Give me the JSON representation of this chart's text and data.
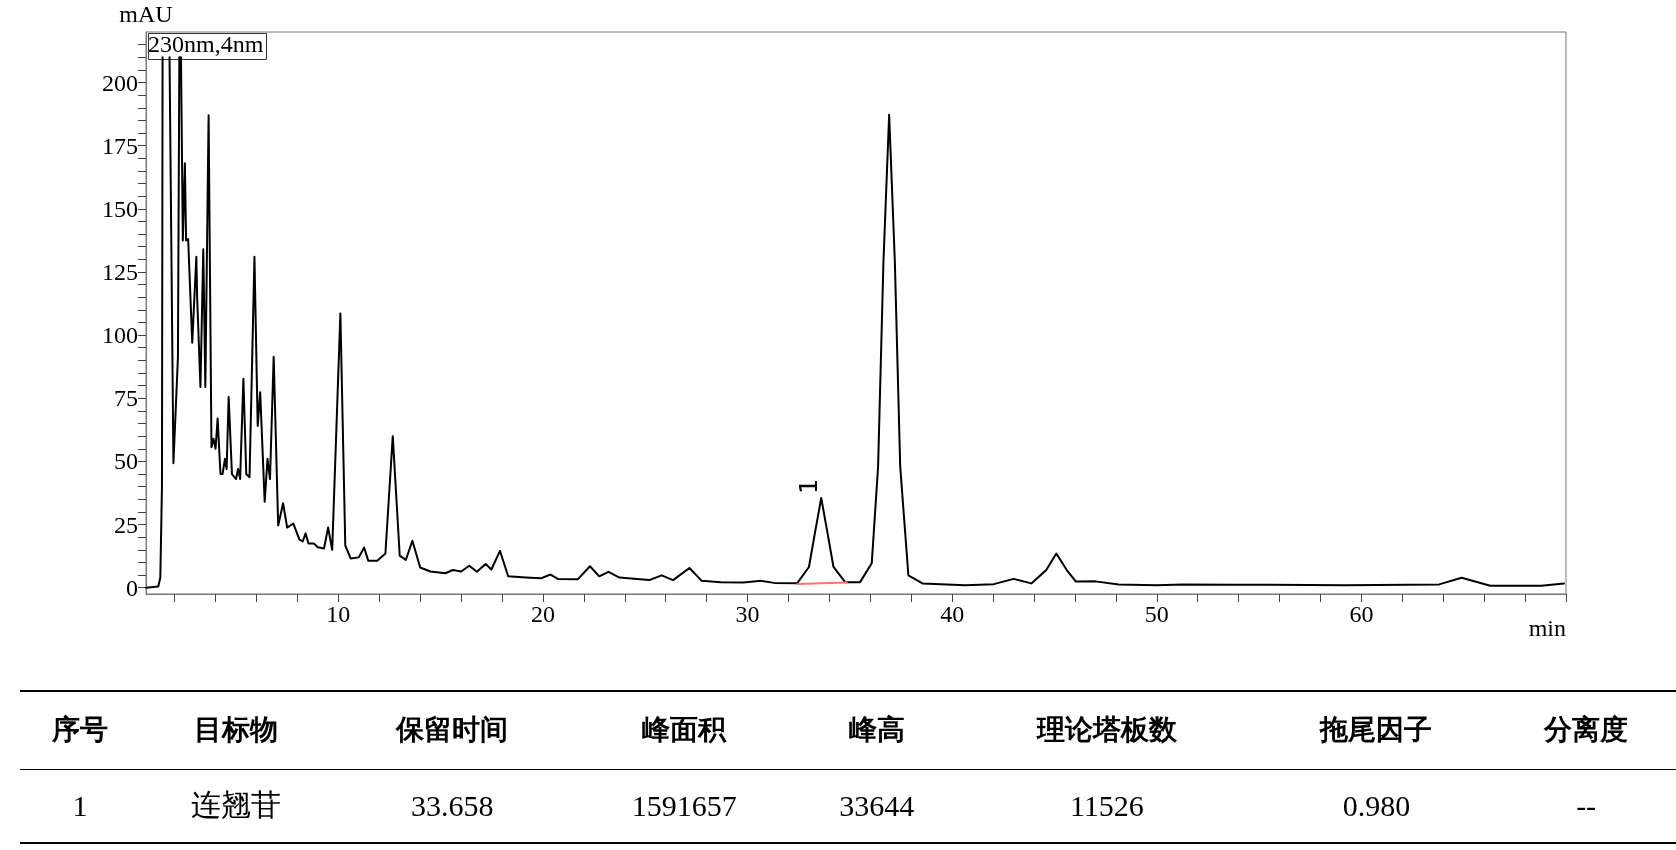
{
  "chart_data": {
    "type": "line",
    "xlabel": "min",
    "ylabel": "mAU",
    "xlim": [
      0.6,
      70
    ],
    "ylim": [
      -2.5,
      220
    ],
    "xticks": [
      {
        "value": 2,
        "label": null
      },
      {
        "value": 4,
        "label": null
      },
      {
        "value": 6,
        "label": null
      },
      {
        "value": 8,
        "label": null
      },
      10,
      {
        "value": 12,
        "label": null
      },
      {
        "value": 14,
        "label": null
      },
      {
        "value": 16,
        "label": null
      },
      {
        "value": 18,
        "label": null
      },
      20,
      {
        "value": 22,
        "label": null
      },
      {
        "value": 24,
        "label": null
      },
      {
        "value": 26,
        "label": null
      },
      {
        "value": 28,
        "label": null
      },
      30,
      {
        "value": 32,
        "label": null
      },
      {
        "value": 34,
        "label": null
      },
      {
        "value": 36,
        "label": null
      },
      {
        "value": 38,
        "label": null
      },
      40,
      {
        "value": 42,
        "label": null
      },
      {
        "value": 44,
        "label": null
      },
      {
        "value": 46,
        "label": null
      },
      {
        "value": 48,
        "label": null
      },
      50,
      {
        "value": 52,
        "label": null
      },
      {
        "value": 54,
        "label": null
      },
      {
        "value": 56,
        "label": null
      },
      {
        "value": 58,
        "label": null
      },
      60,
      {
        "value": 62,
        "label": null
      },
      {
        "value": 64,
        "label": null
      },
      {
        "value": 66,
        "label": null
      },
      {
        "value": 68,
        "label": null
      },
      {
        "value": 70,
        "label": null
      }
    ],
    "yticks": [
      0,
      {
        "value": 5,
        "label": null
      },
      {
        "value": 10,
        "label": null
      },
      {
        "value": 15,
        "label": null
      },
      {
        "value": 20,
        "label": null
      },
      25,
      {
        "value": 30,
        "label": null
      },
      {
        "value": 35,
        "label": null
      },
      {
        "value": 40,
        "label": null
      },
      {
        "value": 45,
        "label": null
      },
      50,
      {
        "value": 55,
        "label": null
      },
      {
        "value": 60,
        "label": null
      },
      {
        "value": 65,
        "label": null
      },
      {
        "value": 70,
        "label": null
      },
      75,
      {
        "value": 80,
        "label": null
      },
      {
        "value": 85,
        "label": null
      },
      {
        "value": 90,
        "label": null
      },
      {
        "value": 95,
        "label": null
      },
      100,
      {
        "value": 105,
        "label": null
      },
      {
        "value": 110,
        "label": null
      },
      {
        "value": 115,
        "label": null
      },
      {
        "value": 120,
        "label": null
      },
      125,
      {
        "value": 130,
        "label": null
      },
      {
        "value": 135,
        "label": null
      },
      {
        "value": 140,
        "label": null
      },
      {
        "value": 145,
        "label": null
      },
      150,
      {
        "value": 155,
        "label": null
      },
      {
        "value": 160,
        "label": null
      },
      {
        "value": 165,
        "label": null
      },
      {
        "value": 170,
        "label": null
      },
      175,
      {
        "value": 180,
        "label": null
      },
      {
        "value": 185,
        "label": null
      },
      {
        "value": 190,
        "label": null
      },
      {
        "value": 195,
        "label": null
      },
      200,
      {
        "value": 205,
        "label": null
      },
      {
        "value": 210,
        "label": null
      },
      {
        "value": 215,
        "label": null
      }
    ],
    "grid": false,
    "marker": "none",
    "line_style": "solid",
    "series": [
      {
        "color": "#000000",
        "x": [
          0.6,
          1.2,
          1.3,
          1.38,
          1.41,
          1.58,
          1.75,
          1.94,
          2.16,
          2.23,
          2.27,
          2.31,
          2.4,
          2.5,
          2.56,
          2.66,
          2.86,
          3.06,
          3.1,
          3.26,
          3.4,
          3.5,
          3.66,
          3.8,
          3.9,
          4.0,
          4.1,
          4.24,
          4.34,
          4.46,
          4.54,
          4.64,
          4.8,
          5.0,
          5.1,
          5.2,
          5.36,
          5.5,
          5.66,
          5.9,
          6.06,
          6.18,
          6.4,
          6.54,
          6.66,
          6.84,
          7.06,
          7.3,
          7.5,
          7.8,
          8.1,
          8.26,
          8.4,
          8.54,
          8.8,
          9.0,
          9.3,
          9.5,
          9.7,
          10.1,
          10.34,
          10.6,
          11.0,
          11.26,
          11.46,
          11.9,
          12.3,
          12.66,
          13.0,
          13.3,
          13.62,
          14.0,
          14.5,
          15.23,
          15.6,
          16.0,
          16.4,
          16.77,
          17.2,
          17.48,
          17.9,
          18.3,
          19.16,
          19.9,
          20.37,
          20.75,
          21.7,
          22.3,
          22.75,
          23.2,
          23.74,
          24.6,
          25.2,
          25.8,
          26.36,
          27.16,
          27.76,
          28.7,
          29.8,
          30.65,
          31.3,
          32.43,
          33.0,
          33.3,
          33.6,
          33.9,
          34.2,
          34.77,
          35.5,
          36.07,
          36.38,
          36.64,
          36.92,
          37.2,
          37.46,
          37.86,
          38.55,
          40.64,
          42.04,
          43.0,
          43.87,
          44.6,
          45.09,
          45.6,
          46.05,
          47.0,
          48.14,
          50,
          51.26,
          53.7,
          59.2,
          63.8,
          64.9,
          66.3,
          68.8,
          69.9
        ],
        "values": [
          0,
          0.5,
          4,
          40,
          210,
          null,
          210,
          49.3,
          91,
          210,
          null,
          210,
          137.5,
          168,
          137.5,
          138,
          97,
          131,
          115,
          79.5,
          134,
          79.5,
          187,
          55.6,
          59,
          55,
          67,
          45,
          45,
          51,
          47,
          75.5,
          45,
          43,
          47,
          43,
          82.7,
          45,
          43.7,
          131,
          64,
          77.4,
          34,
          51,
          43,
          91.4,
          24.6,
          33.4,
          23.8,
          25.4,
          19,
          18.3,
          21.5,
          17.5,
          17.5,
          16,
          15.5,
          23.8,
          15,
          108.6,
          16.7,
          11.6,
          12,
          15.9,
          10.7,
          10.7,
          13.5,
          60,
          12.7,
          11,
          18.6,
          8,
          6.4,
          5.7,
          7,
          6.4,
          8.7,
          6.3,
          9.4,
          7.2,
          14.6,
          4.5,
          4,
          3.7,
          5.2,
          3.4,
          3.3,
          8.5,
          4.5,
          6.3,
          4,
          3.4,
          3,
          4.9,
          3,
          7.8,
          2.7,
          2.2,
          2.1,
          2.7,
          1.9,
          1.8,
          8.2,
          22,
          35.5,
          22,
          8.2,
          2.2,
          2.2,
          9.7,
          48,
          128.7,
          187.2,
          128.7,
          48,
          4.9,
          1.7,
          1,
          1.4,
          3.5,
          1.7,
          7,
          13.5,
          7,
          2.4,
          2.5,
          1.3,
          1,
          1.3,
          1.2,
          1,
          1.3,
          3.9,
          0.8,
          0.8,
          1.7
        ]
      },
      {
        "color": "#ff7070",
        "x": [
          32.43,
          34.86
        ],
        "values": [
          1.5,
          2.1
        ]
      }
    ],
    "annotations": [
      "230nm,4nm",
      {
        "text": "1",
        "x": 33.658,
        "y": 35.5
      },
      "序号",
      "目标物",
      "保留时间",
      "峰面积",
      "峰高",
      "理论塔板数",
      "拖尾因子",
      "分离度",
      "1",
      "连翘苷",
      "33.658",
      "1591657",
      "33644",
      "11526",
      "0.980",
      "--"
    ]
  }
}
